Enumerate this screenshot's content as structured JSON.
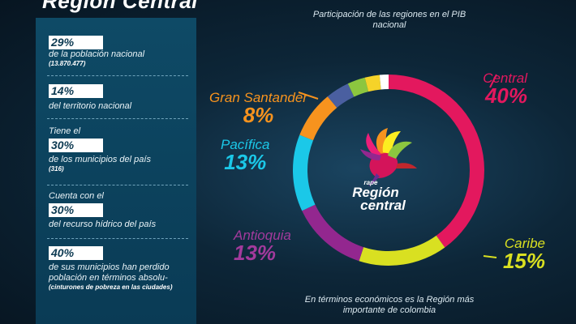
{
  "title": "Región Central",
  "stats": [
    {
      "pct": "29%",
      "text": "de la población nacional",
      "small": "(13.870.477)"
    },
    {
      "pct": "14%",
      "text": "del territorio nacional"
    },
    {
      "pre": "Tiene el",
      "pct": "30%",
      "text": "de los municipios del país",
      "small": "(316)"
    },
    {
      "pre": "Cuenta con el",
      "pct": "30%",
      "text": "del recurso hídrico del país"
    },
    {
      "pct": "40%",
      "text": "de sus municipios han perdido población en términos absolu-",
      "small": "(cinturones de pobreza en las ciudades)"
    }
  ],
  "logo": {
    "prefix": "rape",
    "line1": "Región",
    "line2": "central"
  },
  "bottom_note": "En términos económicos es la Región más importante de colombia",
  "chart_data": {
    "type": "pie",
    "title": "Participación de las regiones en el PIB nacional",
    "slices": [
      {
        "name": "Central",
        "label": "40%",
        "value": 40,
        "color": "#e3185e"
      },
      {
        "name": "Caribe",
        "label": "15%",
        "value": 15,
        "color": "#d9e021"
      },
      {
        "name": "Antioquia",
        "label": "13%",
        "value": 13,
        "color": "#93278f"
      },
      {
        "name": "Pacífica",
        "label": "13%",
        "value": 13,
        "color": "#1bc8e8"
      },
      {
        "name": "Gran Santander",
        "label": "8%",
        "value": 8,
        "color": "#f7931e"
      },
      {
        "name": "",
        "label": "",
        "value": 4,
        "color": "#4a5fa0"
      },
      {
        "name": "",
        "label": "",
        "value": 3,
        "color": "#8cc63f"
      },
      {
        "name": "",
        "label": "",
        "value": 2.5,
        "color": "#f5d329"
      },
      {
        "name": "",
        "label": "",
        "value": 1.5,
        "color": "#ffffff"
      }
    ],
    "legend": "labels-around"
  }
}
